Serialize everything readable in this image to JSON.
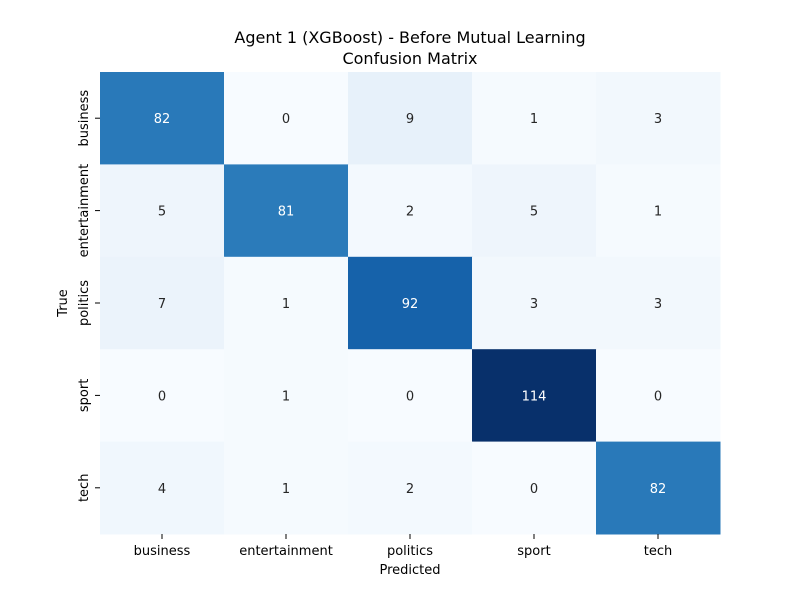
{
  "chart_data": {
    "type": "heatmap",
    "title_lines": [
      "Agent 1 (XGBoost) - Before Mutual Learning",
      "Confusion Matrix"
    ],
    "xlabel": "Predicted",
    "ylabel": "True",
    "x_categories": [
      "business",
      "entertainment",
      "politics",
      "sport",
      "tech"
    ],
    "y_categories": [
      "business",
      "entertainment",
      "politics",
      "sport",
      "tech"
    ],
    "values": [
      [
        82,
        0,
        9,
        1,
        3
      ],
      [
        5,
        81,
        2,
        5,
        1
      ],
      [
        7,
        1,
        92,
        3,
        3
      ],
      [
        0,
        1,
        0,
        114,
        0
      ],
      [
        4,
        1,
        2,
        0,
        82
      ]
    ],
    "colormap": "Blues",
    "value_range": [
      0,
      114
    ],
    "colorbar": false,
    "grid": false
  }
}
